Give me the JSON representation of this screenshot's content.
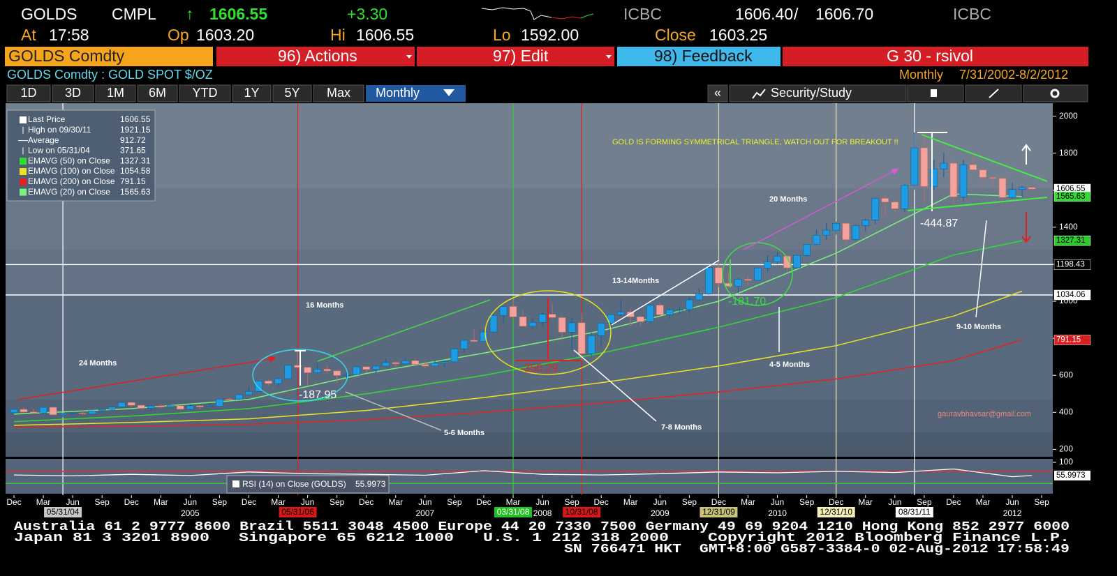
{
  "header": {
    "ticker": "GOLDS",
    "source": "CMPL",
    "arrow": "↑",
    "last": "1606.55",
    "change": "+3.30",
    "bid_source": "ICBC",
    "bid": "1606.40",
    "sep": "/",
    "ask": "1606.70",
    "ask_source": "ICBC",
    "time_label": "At",
    "time": "17:58",
    "open_label": "Op",
    "open": "1603.20",
    "high_label": "Hi",
    "high": "1606.55",
    "low_label": "Lo",
    "low": "1592.00",
    "close_label": "Close",
    "close": "1603.25"
  },
  "menu": {
    "security": "GOLDS Comdty",
    "actions": "96) Actions",
    "edit": "97) Edit",
    "feedback": "98) Feedback",
    "page": "G 30 - rsivol"
  },
  "subheader": {
    "security": "GOLDS Comdty : GOLD SPOT $/OZ",
    "period": "Monthly",
    "range": "7/31/2002-8/2/2012"
  },
  "tabs": [
    "1D",
    "3D",
    "1M",
    "6M",
    "YTD",
    "1Y",
    "5Y",
    "Max"
  ],
  "period_select": "Monthly",
  "collapse": "«",
  "security_study": "Security/Study",
  "chart_data": {
    "type": "candlestick",
    "up_color": "#1d9be3",
    "down_color": "#f3a29c",
    "ylim": [
      160,
      2070
    ],
    "yticks": [
      200,
      400,
      600,
      800,
      1000,
      1200,
      1400,
      1600,
      1800,
      2000
    ],
    "candles": [
      [
        "2003-12",
        398,
        418,
        395,
        416
      ],
      [
        "2004-01",
        416,
        427,
        399,
        402
      ],
      [
        "2004-02",
        402,
        419,
        391,
        396
      ],
      [
        "2004-03",
        396,
        430,
        393,
        427
      ],
      [
        "2004-04",
        427,
        428,
        384,
        387
      ],
      [
        "2004-05",
        387,
        396,
        371.65,
        394
      ],
      [
        "2004-06",
        394,
        398,
        383,
        395
      ],
      [
        "2004-07",
        395,
        410,
        385,
        391
      ],
      [
        "2004-08",
        391,
        410,
        389,
        408
      ],
      [
        "2004-09",
        408,
        418,
        400,
        416
      ],
      [
        "2004-10",
        416,
        432,
        410,
        429
      ],
      [
        "2004-11",
        429,
        456,
        424,
        453
      ],
      [
        "2004-12",
        453,
        455,
        426,
        438
      ],
      [
        "2005-01",
        438,
        440,
        418,
        422
      ],
      [
        "2005-02",
        422,
        438,
        411,
        435
      ],
      [
        "2005-03",
        435,
        445,
        424,
        428
      ],
      [
        "2005-04",
        428,
        438,
        423,
        436
      ],
      [
        "2005-05",
        436,
        437,
        414,
        417
      ],
      [
        "2005-06",
        417,
        443,
        414,
        435
      ],
      [
        "2005-07",
        435,
        436,
        418,
        429
      ],
      [
        "2005-08",
        429,
        448,
        428,
        433
      ],
      [
        "2005-09",
        433,
        474,
        432,
        472
      ],
      [
        "2005-10",
        472,
        478,
        462,
        470
      ],
      [
        "2005-11",
        470,
        497,
        466,
        495
      ],
      [
        "2005-12",
        495,
        540,
        493,
        513
      ],
      [
        "2006-01",
        513,
        572,
        511,
        569
      ],
      [
        "2006-02",
        569,
        575,
        544,
        556
      ],
      [
        "2006-03",
        556,
        587,
        538,
        582
      ],
      [
        "2006-04",
        582,
        655,
        580,
        654
      ],
      [
        "2006-05",
        654,
        730,
        635,
        643
      ],
      [
        "2006-06",
        643,
        643,
        543,
        614
      ],
      [
        "2006-07",
        614,
        664,
        612,
        633
      ],
      [
        "2006-08",
        633,
        653,
        610,
        624
      ],
      [
        "2006-09",
        624,
        626,
        560,
        599
      ],
      [
        "2006-10",
        599,
        612,
        570,
        604
      ],
      [
        "2006-11",
        604,
        650,
        600,
        646
      ],
      [
        "2006-12",
        646,
        650,
        612,
        632
      ],
      [
        "2007-01",
        632,
        655,
        603,
        650
      ],
      [
        "2007-02",
        650,
        690,
        648,
        669
      ],
      [
        "2007-03",
        669,
        672,
        637,
        662
      ],
      [
        "2007-04",
        662,
        694,
        660,
        679
      ],
      [
        "2007-05",
        679,
        690,
        651,
        659
      ],
      [
        "2007-06",
        659,
        671,
        640,
        650
      ],
      [
        "2007-07",
        650,
        684,
        648,
        666
      ],
      [
        "2007-08",
        666,
        675,
        642,
        673
      ],
      [
        "2007-09",
        673,
        745,
        670,
        743
      ],
      [
        "2007-10",
        743,
        792,
        723,
        789
      ],
      [
        "2007-11",
        789,
        848,
        780,
        783
      ],
      [
        "2007-12",
        783,
        845,
        780,
        834
      ],
      [
        "2008-01",
        834,
        930,
        830,
        923
      ],
      [
        "2008-02",
        923,
        975,
        880,
        972
      ],
      [
        "2008-03",
        972,
        1011,
        911,
        916
      ],
      [
        "2008-04",
        916,
        948,
        863,
        865
      ],
      [
        "2008-05",
        865,
        908,
        851,
        886
      ],
      [
        "2008-06",
        886,
        940,
        860,
        930
      ],
      [
        "2008-07",
        930,
        988,
        906,
        912
      ],
      [
        "2008-08",
        912,
        919,
        786,
        833
      ],
      [
        "2008-09",
        833,
        912,
        736,
        884
      ],
      [
        "2008-10",
        884,
        937,
        681,
        717
      ],
      [
        "2008-11",
        717,
        830,
        705,
        814
      ],
      [
        "2008-12",
        814,
        885,
        753,
        882
      ],
      [
        "2009-01",
        882,
        931,
        801,
        928
      ],
      [
        "2009-02",
        928,
        1006,
        920,
        942
      ],
      [
        "2009-03",
        942,
        962,
        865,
        916
      ],
      [
        "2009-04",
        916,
        922,
        866,
        890
      ],
      [
        "2009-05",
        890,
        981,
        880,
        979
      ],
      [
        "2009-06",
        979,
        990,
        920,
        927
      ],
      [
        "2009-07",
        927,
        960,
        905,
        954
      ],
      [
        "2009-08",
        954,
        967,
        932,
        955
      ],
      [
        "2009-09",
        955,
        1024,
        935,
        1008
      ],
      [
        "2009-10",
        1008,
        1071,
        1000,
        1040
      ],
      [
        "2009-11",
        1040,
        1195,
        1035,
        1182
      ],
      [
        "2009-12",
        1182,
        1227,
        1075,
        1097
      ],
      [
        "2010-01",
        1097,
        1162,
        1074,
        1081
      ],
      [
        "2010-02",
        1081,
        1127,
        1044,
        1119
      ],
      [
        "2010-03",
        1119,
        1139,
        1086,
        1113
      ],
      [
        "2010-04",
        1113,
        1183,
        1111,
        1180
      ],
      [
        "2010-05",
        1180,
        1249,
        1162,
        1213
      ],
      [
        "2010-06",
        1213,
        1265,
        1200,
        1244
      ],
      [
        "2010-07",
        1244,
        1246,
        1155,
        1181
      ],
      [
        "2010-08",
        1181,
        1250,
        1176,
        1248
      ],
      [
        "2010-09",
        1248,
        1310,
        1243,
        1308
      ],
      [
        "2010-10",
        1308,
        1387,
        1305,
        1357
      ],
      [
        "2010-11",
        1357,
        1424,
        1330,
        1384
      ],
      [
        "2010-12",
        1384,
        1431,
        1360,
        1421
      ],
      [
        "2011-01",
        1421,
        1424,
        1309,
        1333
      ],
      [
        "2011-02",
        1333,
        1411,
        1327,
        1409
      ],
      [
        "2011-03",
        1409,
        1447,
        1380,
        1439
      ],
      [
        "2011-04",
        1439,
        1557,
        1417,
        1556
      ],
      [
        "2011-05",
        1556,
        1577,
        1462,
        1536
      ],
      [
        "2011-06",
        1536,
        1552,
        1478,
        1500
      ],
      [
        "2011-07",
        1500,
        1632,
        1480,
        1628
      ],
      [
        "2011-08",
        1628,
        1912,
        1602,
        1829
      ],
      [
        "2011-09",
        1829,
        1921.15,
        1532,
        1620
      ],
      [
        "2011-10",
        1620,
        1764,
        1600,
        1715
      ],
      [
        "2011-11",
        1715,
        1803,
        1670,
        1746
      ],
      [
        "2011-12",
        1746,
        1763,
        1523,
        1564
      ],
      [
        "2012-01",
        1564,
        1764,
        1540,
        1738
      ],
      [
        "2012-02",
        1738,
        1791,
        1696,
        1710
      ],
      [
        "2012-03",
        1710,
        1720,
        1627,
        1669
      ],
      [
        "2012-04",
        1669,
        1678,
        1614,
        1664
      ],
      [
        "2012-05",
        1664,
        1668,
        1527,
        1561
      ],
      [
        "2012-06",
        1561,
        1641,
        1555,
        1604
      ],
      [
        "2012-07",
        1604,
        1625,
        1564,
        1615
      ],
      [
        "2012-08",
        1615,
        1617,
        1592,
        1606.55
      ]
    ],
    "legend": [
      {
        "name": "Last Price",
        "value": 1606.55
      },
      {
        "name": "High on 09/30/11",
        "value": 1921.15
      },
      {
        "name": "Average",
        "value": 912.72
      },
      {
        "name": "Low on 05/31/04",
        "value": 371.65
      }
    ],
    "series": [
      {
        "name": "EMAVG (50) on Close",
        "color": "#2fdc2f",
        "x": [
          "2003-12",
          "2004-12",
          "2005-12",
          "2006-12",
          "2007-12",
          "2008-12",
          "2009-12",
          "2010-12",
          "2011-12",
          "2012-07"
        ],
        "values": [
          350,
          380,
          420,
          500,
          600,
          720,
          860,
          1020,
          1250,
          1327.31
        ]
      },
      {
        "name": "EMAVG (100) on Close",
        "color": "#ece326",
        "x": [
          "2003-12",
          "2004-12",
          "2005-12",
          "2006-12",
          "2007-12",
          "2008-12",
          "2009-12",
          "2010-12",
          "2011-12",
          "2012-07"
        ],
        "values": [
          330,
          345,
          365,
          410,
          480,
          560,
          650,
          760,
          920,
          1054.58
        ]
      },
      {
        "name": "EMAVG (200) on Close",
        "color": "#e52222",
        "x": [
          "2003-12",
          "2004-12",
          "2005-12",
          "2006-12",
          "2007-12",
          "2008-12",
          "2009-12",
          "2010-12",
          "2011-12",
          "2012-07"
        ],
        "values": [
          320,
          325,
          335,
          360,
          400,
          450,
          510,
          580,
          680,
          791.15
        ]
      },
      {
        "name": "EMAVG (20) on Close",
        "color": "#7cf07c",
        "x": [
          "2003-12",
          "2004-12",
          "2005-12",
          "2006-12",
          "2007-12",
          "2008-12",
          "2009-12",
          "2010-12",
          "2011-12",
          "2012-07"
        ],
        "values": [
          390,
          420,
          470,
          610,
          720,
          840,
          1000,
          1260,
          1580,
          1565.63
        ]
      }
    ],
    "price_labels": [
      {
        "value": 1606.55,
        "color": "#ffffff",
        "line": false
      },
      {
        "value": 1565.63,
        "color": "#39d639",
        "line": false
      },
      {
        "value": 1327.31,
        "color": "#2fc82f",
        "line": false
      },
      {
        "value": 1198.43,
        "color": "#000000",
        "line": true
      },
      {
        "value": 1034.06,
        "color": "#ffffff",
        "line": true
      },
      {
        "value": 791.15,
        "color": "#d81e1e",
        "line": false
      }
    ],
    "markers": [
      {
        "label": "05/31/04",
        "color": "#ffffff",
        "box": "#c9c9c9"
      },
      {
        "label": "05/31/06",
        "color": "#e02020",
        "box": "#d81818"
      },
      {
        "label": "03/31/08",
        "color": "#2ed02e",
        "box": "#22c022"
      },
      {
        "label": "10/31/08",
        "color": "#e02020",
        "box": "#d81818"
      },
      {
        "label": "12/31/09",
        "color": "#d8d8b0",
        "box": "#c9c27a"
      },
      {
        "label": "12/31/10",
        "color": "#f2f0c0",
        "box": "#f3eeb8"
      },
      {
        "label": "08/31/11",
        "color": "#ffffff",
        "box": "#ffffff"
      }
    ],
    "xticks": [
      {
        "value": "2003-12",
        "label": "Dec"
      },
      {
        "value": "2004-03",
        "label": "Mar"
      },
      {
        "value": "2004-06",
        "label": "Jun"
      },
      {
        "value": "2004-09",
        "label": "Sep"
      },
      {
        "value": "2004-12",
        "label": "Dec"
      },
      {
        "value": "2005-03",
        "label": "Mar"
      },
      {
        "value": "2005-06",
        "label": "Jun"
      },
      {
        "value": "2005-09",
        "label": "Sep"
      },
      {
        "value": "2005-12",
        "label": "Dec"
      },
      {
        "value": "2006-03",
        "label": "Mar"
      },
      {
        "value": "2006-06",
        "label": "Jun"
      },
      {
        "value": "2006-09",
        "label": "Sep"
      },
      {
        "value": "2006-12",
        "label": "Dec"
      },
      {
        "value": "2007-03",
        "label": "Mar"
      },
      {
        "value": "2007-06",
        "label": "Jun"
      },
      {
        "value": "2007-09",
        "label": "Sep"
      },
      {
        "value": "2007-12",
        "label": "Dec"
      },
      {
        "value": "2008-03",
        "label": "Mar"
      },
      {
        "value": "2008-06",
        "label": "Jun"
      },
      {
        "value": "2008-09",
        "label": "Sep"
      },
      {
        "value": "2008-12",
        "label": "Dec"
      },
      {
        "value": "2009-03",
        "label": "Mar"
      },
      {
        "value": "2009-06",
        "label": "Jun"
      },
      {
        "value": "2009-09",
        "label": "Sep"
      },
      {
        "value": "2009-12",
        "label": "Dec"
      },
      {
        "value": "2010-03",
        "label": "Mar"
      },
      {
        "value": "2010-06",
        "label": "Jun"
      },
      {
        "value": "2010-09",
        "label": "Sep"
      },
      {
        "value": "2010-12",
        "label": "Dec"
      },
      {
        "value": "2011-03",
        "label": "Mar"
      },
      {
        "value": "2011-06",
        "label": "Jun"
      },
      {
        "value": "2011-09",
        "label": "Sep"
      },
      {
        "value": "2011-12",
        "label": "Dec"
      },
      {
        "value": "2012-03",
        "label": "Mar"
      },
      {
        "value": "2012-06",
        "label": "Jun"
      },
      {
        "value": "2012-09",
        "label": "Sep"
      }
    ],
    "year_ticks": [
      {
        "value": "2005-06",
        "label": "2005"
      },
      {
        "value": "2007-06",
        "label": "2007"
      },
      {
        "value": "2008-06",
        "label": "2008"
      },
      {
        "value": "2009-06",
        "label": "2009"
      },
      {
        "value": "2010-06",
        "label": "2010"
      },
      {
        "value": "2012-06",
        "label": "2012"
      }
    ],
    "annotations": [
      {
        "text": "GOLD IS FORMING SYMMETRICAL TRIANGLE, WATCH OUT FOR BREAKOUT !!",
        "color": "#f2ee30"
      },
      {
        "text": "24 Months",
        "color": "#ffffff"
      },
      {
        "text": "16 Months",
        "color": "#ffffff"
      },
      {
        "text": "5-6 Months",
        "color": "#ffffff"
      },
      {
        "text": "7-8 Months",
        "color": "#ffffff"
      },
      {
        "text": "13-14Months",
        "color": "#ffffff"
      },
      {
        "text": "20 Months",
        "color": "#ffffff"
      },
      {
        "text": "4-5 Months",
        "color": "#ffffff"
      },
      {
        "text": "9-10 Months",
        "color": "#ffffff"
      },
      {
        "text": "gauravbhavsar@gmail.com",
        "color": "#f08878"
      },
      {
        "text": "-187.95",
        "color": "#ffffff"
      },
      {
        "text": "-350.29",
        "color": "#e02424"
      },
      {
        "text": "-181.70",
        "color": "#39e039"
      },
      {
        "text": "-444.87",
        "color": "#ffffff"
      }
    ],
    "rsi": {
      "label": "RSI (14) on Close (GOLDS)",
      "value": 55.9973,
      "ylim": [
        0,
        100
      ],
      "yticks": [
        100
      ],
      "levels": [
        {
          "value": 70,
          "color": "#e03030"
        },
        {
          "value": 30,
          "color": "#30d030"
        }
      ],
      "x": [
        "2003-12",
        "2004-06",
        "2004-12",
        "2005-06",
        "2005-12",
        "2006-06",
        "2006-12",
        "2007-06",
        "2007-12",
        "2008-06",
        "2008-12",
        "2009-06",
        "2009-12",
        "2010-06",
        "2010-12",
        "2011-06",
        "2011-12",
        "2012-06",
        "2012-08"
      ],
      "values": [
        58,
        55,
        60,
        56,
        68,
        62,
        60,
        57,
        72,
        60,
        58,
        62,
        68,
        65,
        70,
        66,
        78,
        52,
        55.9973
      ]
    }
  },
  "footer": [
    "Australia 61 2 9777 8600 Brazil 5511 3048 4500 Europe 44 20 7330 7500 Germany 49 69 9204 1210 Hong Kong 852 2977 6000",
    "Japan 81 3 3201 8900   Singapore 65 6212 1000   U.S. 1 212 318 2000    Copyright 2012 Bloomberg Finance L.P.",
    "SN 766471 HKT  GMT+8:00 G587-3384-0 02-Aug-2012 17:58:49"
  ]
}
